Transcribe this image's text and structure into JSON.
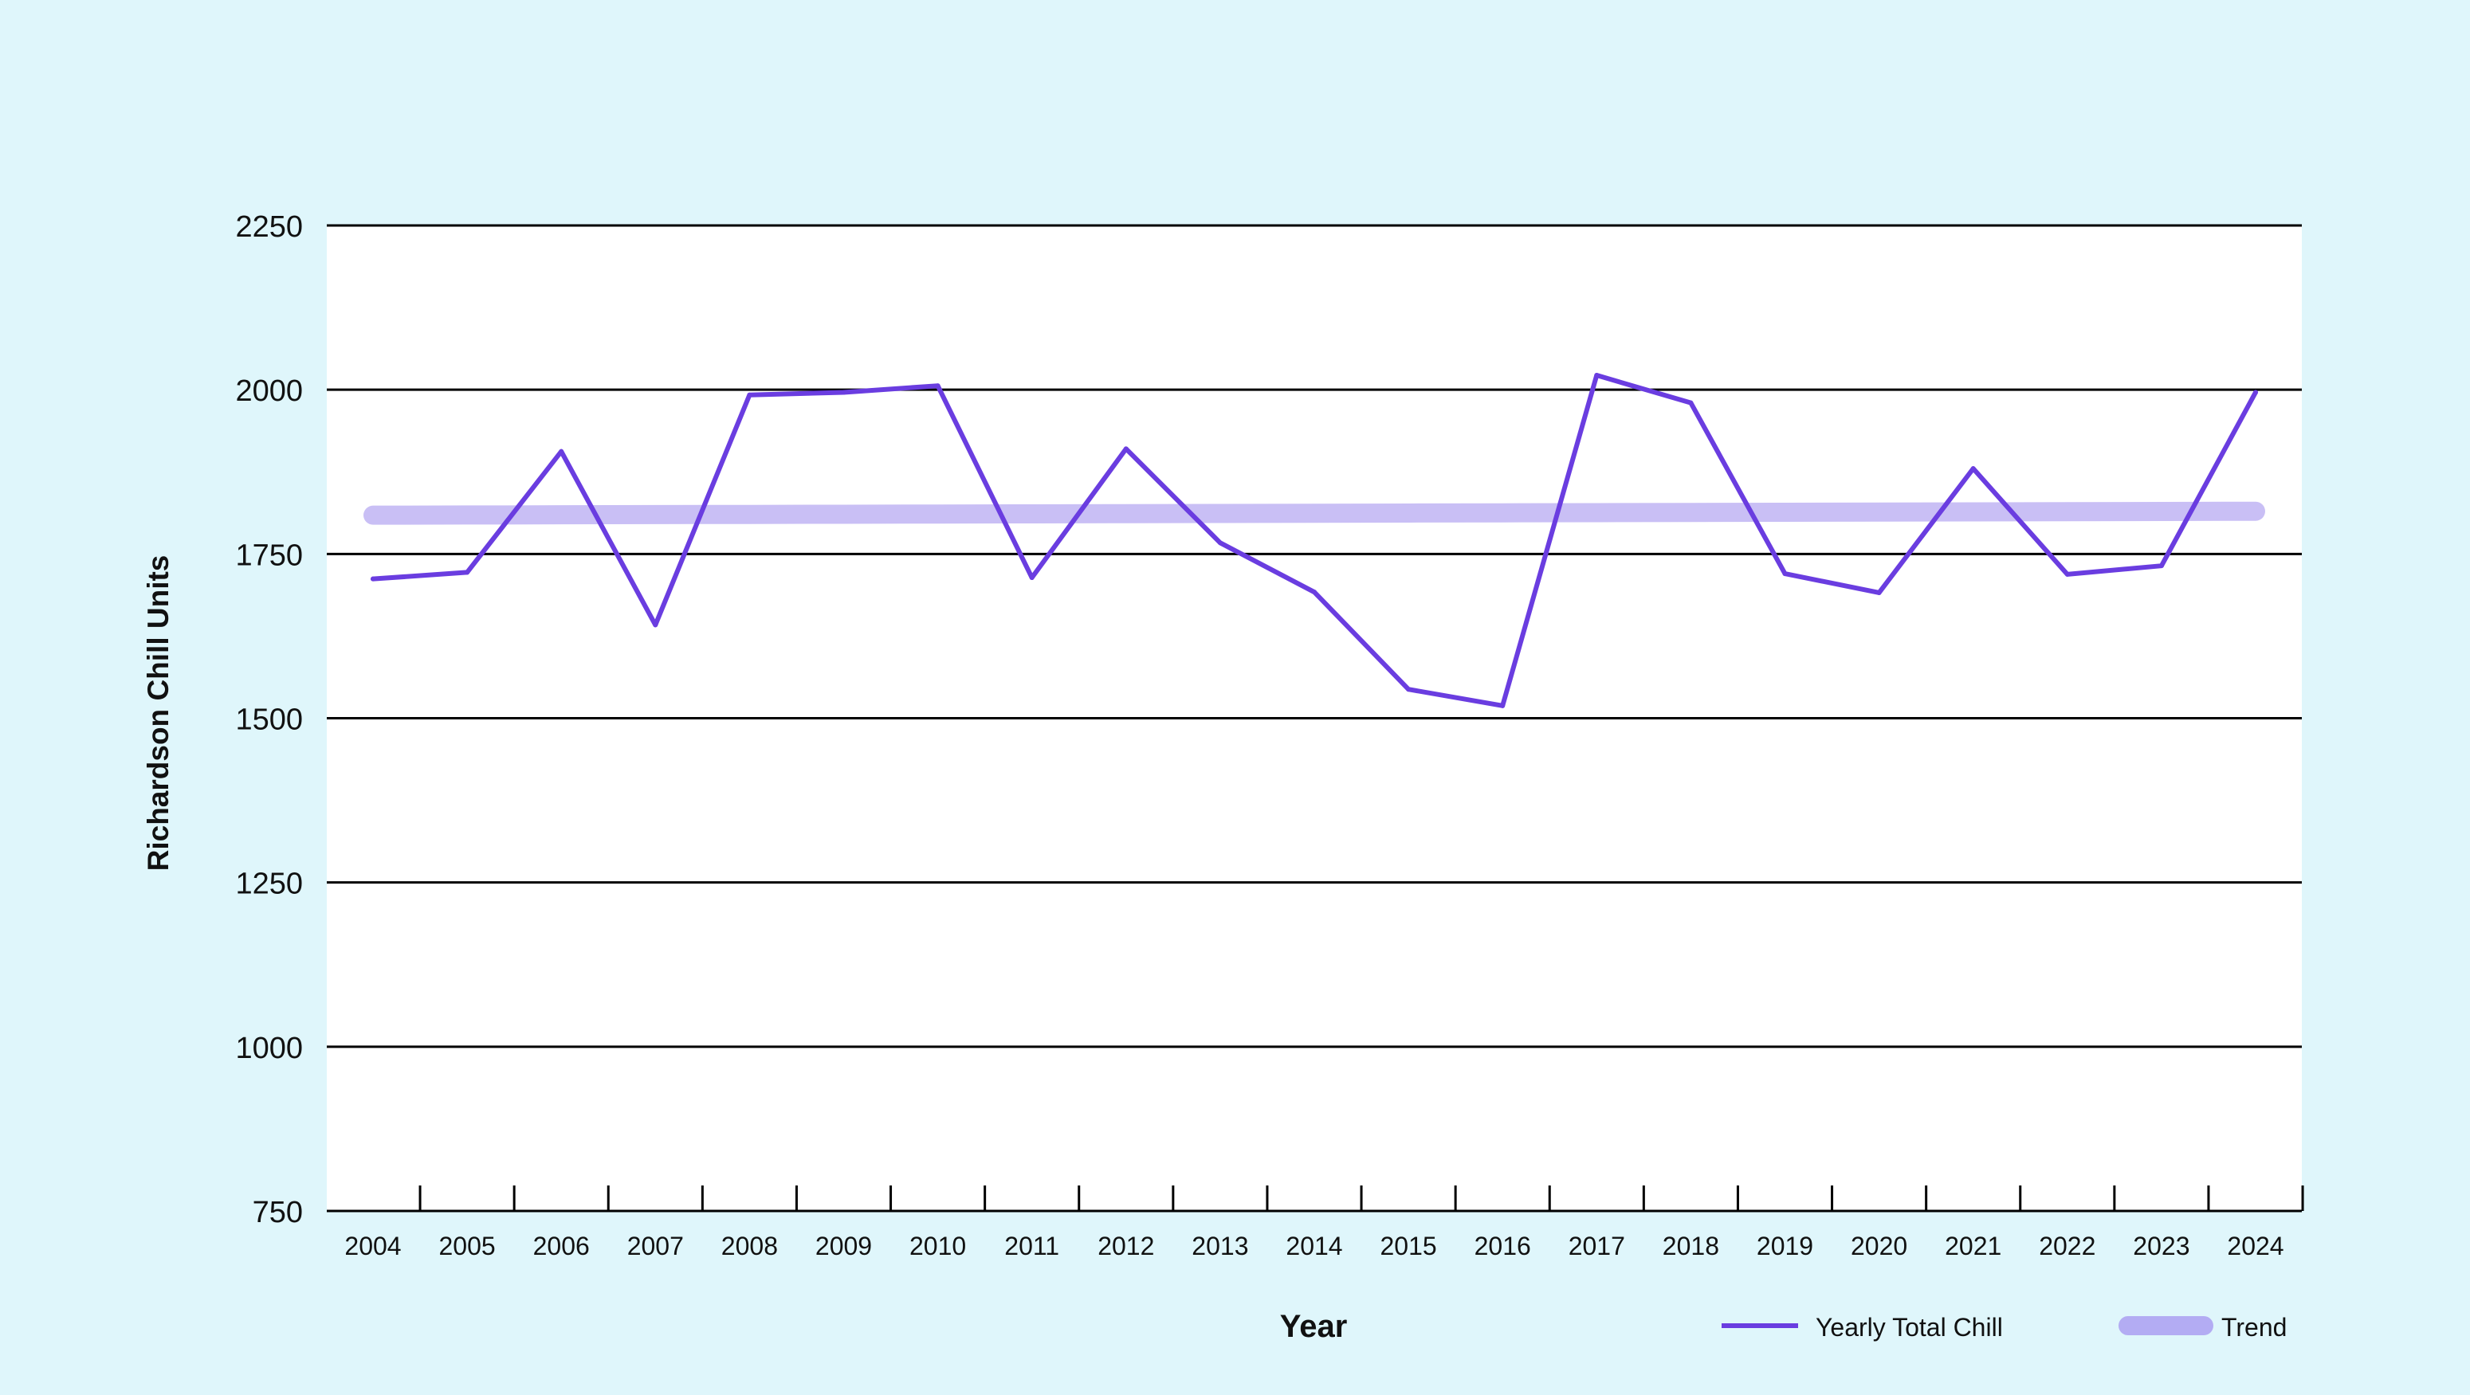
{
  "chart_data": {
    "type": "line",
    "title": "",
    "xlabel": "Year",
    "ylabel": "Richardson Chill Units",
    "ylim": [
      750,
      2250
    ],
    "yticks": [
      750,
      1000,
      1250,
      1500,
      1750,
      2000,
      2250
    ],
    "categories": [
      "2004",
      "2005",
      "2006",
      "2007",
      "2008",
      "2009",
      "2010",
      "2011",
      "2012",
      "2013",
      "2014",
      "2015",
      "2016",
      "2017",
      "2018",
      "2019",
      "2020",
      "2021",
      "2022",
      "2023",
      "2024"
    ],
    "series": [
      {
        "name": "Yearly Total Chill",
        "color": "#6a3de0",
        "values": [
          1712,
          1722,
          1906,
          1642,
          1992,
          1996,
          2006,
          1714,
          1910,
          1767,
          1692,
          1544,
          1519,
          2022,
          1980,
          1720,
          1691,
          1880,
          1719,
          1732,
          1996
        ]
      },
      {
        "name": "Trend",
        "color": "#c9bff5",
        "values": [
          1809,
          1809.3,
          1809.6,
          1809.9,
          1810.2,
          1810.5,
          1810.8,
          1811.1,
          1811.4,
          1811.7,
          1812,
          1812.3,
          1812.6,
          1812.9,
          1813.2,
          1813.5,
          1813.8,
          1814.1,
          1814.4,
          1814.7,
          1815
        ]
      }
    ],
    "grid": true,
    "legend": "bottom-right",
    "plot_background": "#ffffff",
    "page_background": "#dff6fb",
    "legend_trend_swatch_color": "#b3acf3"
  }
}
